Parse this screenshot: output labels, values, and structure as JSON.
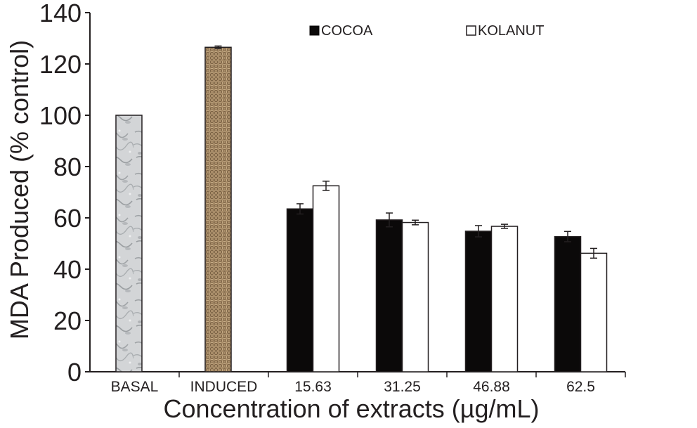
{
  "chart_data": {
    "type": "bar",
    "title": "",
    "xlabel": "Concentration of extracts (µg/mL)",
    "ylabel": "MDA Produced (% control)",
    "ylim": [
      0,
      140
    ],
    "yticks": [
      "0",
      "20",
      "40",
      "60",
      "80",
      "100",
      "120",
      "140"
    ],
    "grid": false,
    "legend_position": "top",
    "categories": [
      "BASAL",
      "INDUCED",
      "15.63",
      "31.25",
      "46.88",
      "62.5"
    ],
    "controls": [
      {
        "category": "BASAL",
        "value": 100,
        "error": 0,
        "pattern": "marble-gray",
        "color": "#c9cbcd"
      },
      {
        "category": "INDUCED",
        "value": 126.5,
        "error": 0.5,
        "pattern": "woven-brown",
        "color": "#a08563"
      }
    ],
    "series": [
      {
        "name": "COCOA",
        "color": "#0b0909",
        "values": [
          null,
          null,
          63.5,
          59.2,
          54.8,
          52.7
        ],
        "errors": [
          null,
          null,
          2.0,
          2.7,
          2.2,
          2.0
        ]
      },
      {
        "name": "KOLANUT",
        "color": "#ffffff",
        "values": [
          null,
          null,
          72.5,
          58.2,
          56.7,
          46.2
        ],
        "errors": [
          null,
          null,
          1.8,
          0.9,
          0.8,
          1.9
        ]
      }
    ]
  }
}
